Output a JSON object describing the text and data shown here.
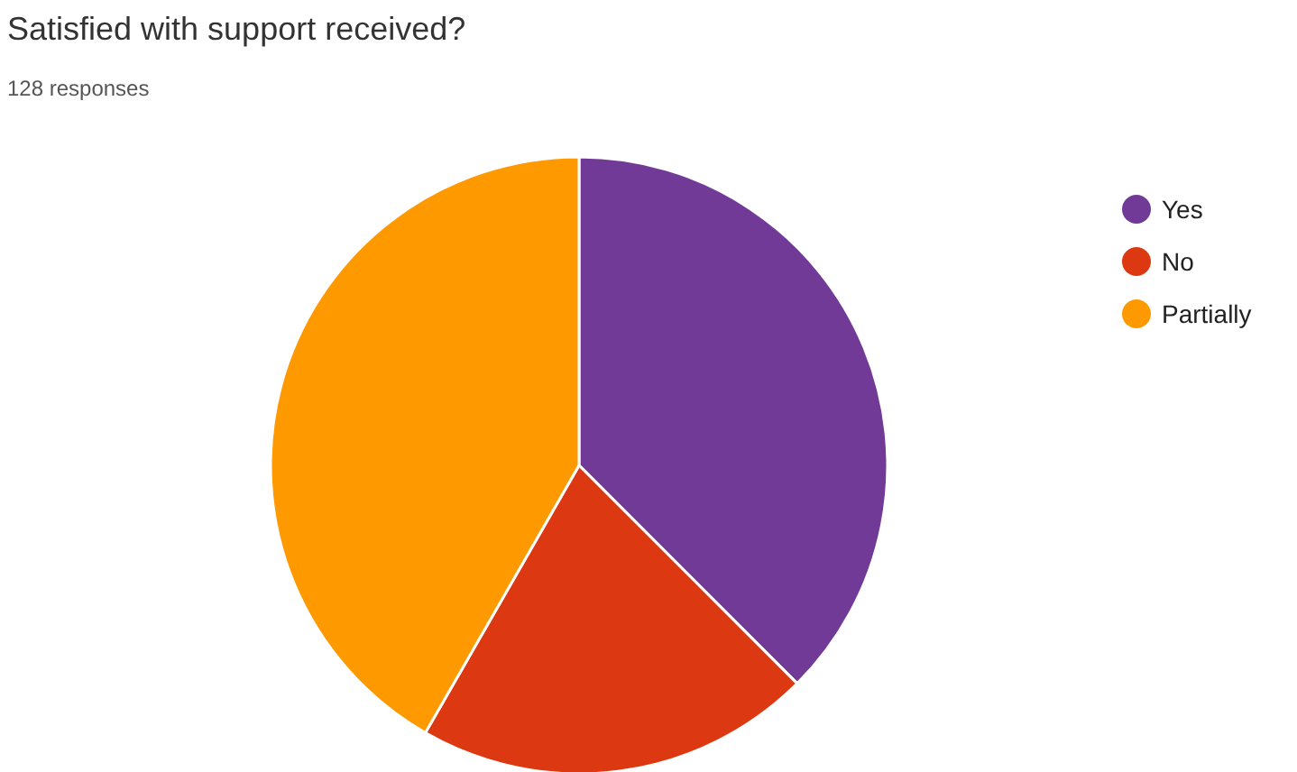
{
  "chart_data": {
    "type": "pie",
    "title": "Satisfied with support received?",
    "subtitle": "128 responses",
    "categories": [
      "Yes",
      "No",
      "Partially"
    ],
    "values": [
      37.5,
      20.8,
      41.7
    ],
    "colors": [
      "#713a97",
      "#dc3912",
      "#ff9900"
    ],
    "legend": "top right"
  }
}
